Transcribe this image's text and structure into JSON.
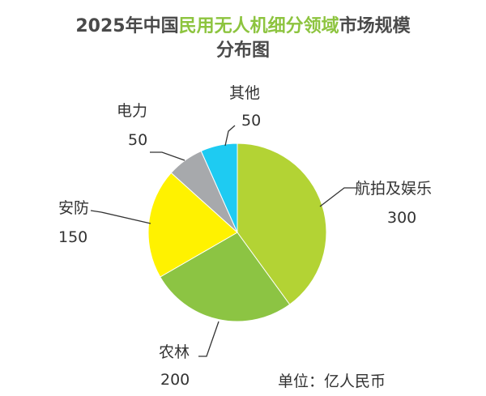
{
  "chart_data": {
    "type": "pie",
    "title_prefix": "2025年中国",
    "title_highlight": "民用无人机细分领域",
    "title_suffix": "市场规模",
    "title_line2": "分布图",
    "unit_note": "单位：亿人民币",
    "slices": [
      {
        "label": "航拍及娱乐",
        "value": 300,
        "value_text": "300",
        "color": "#b3d334"
      },
      {
        "label": "农林",
        "value": 200,
        "value_text": "200",
        "color": "#8cc443"
      },
      {
        "label": "安防",
        "value": 150,
        "value_text": "150",
        "color": "#fff200"
      },
      {
        "label": "电力",
        "value": 50,
        "value_text": "50",
        "color": "#a7a9ac"
      },
      {
        "label": "其他",
        "value": 50,
        "value_text": "50",
        "color": "#1ecbf2"
      }
    ]
  }
}
